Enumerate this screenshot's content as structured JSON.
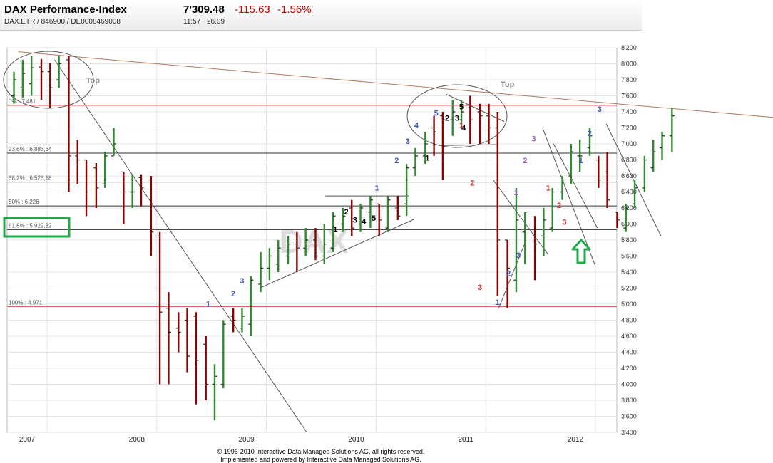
{
  "header": {
    "title": "DAX Performance-Index",
    "identifiers": "DAX.ETR  /  846900  /  DE0008469008",
    "price": "7'309.48",
    "change": "-115.63",
    "change_pct": "-1.56%",
    "time": "11:57",
    "date": "26.09"
  },
  "footer": {
    "line1": "© 1996-2010 Interactive Data Managed Solutions AG, all rights reserved.",
    "line2": "Implemented and powered by Interactive Data Managed Solutions AG."
  },
  "colors": {
    "up": "#2e8b2e",
    "down": "#8b0000",
    "highlight": "#22a84a",
    "fib_line": "#333333",
    "extreme_line": "#cc3333",
    "resistance": "#b07a60"
  },
  "chart_data": {
    "type": "ohlc",
    "watermark": "DAX",
    "ylim": [
      3400,
      8200
    ],
    "y_ticks": [
      "8'200",
      "8'000",
      "7'800",
      "7'600",
      "7'400",
      "7'200",
      "7'000",
      "6'800",
      "6'600",
      "6'400",
      "6'200",
      "6'000",
      "5'800",
      "5'600",
      "5'400",
      "5'200",
      "5'000",
      "4'800",
      "4'600",
      "4'400",
      "4'200",
      "4'000",
      "3'800",
      "3'600",
      "3'400"
    ],
    "x_labels": [
      {
        "t": 2007.0,
        "label": "2007"
      },
      {
        "t": 2008.0,
        "label": "2008"
      },
      {
        "t": 2009.0,
        "label": "2009"
      },
      {
        "t": 2010.0,
        "label": "2010"
      },
      {
        "t": 2011.0,
        "label": "2011"
      },
      {
        "t": 2012.0,
        "label": "2012"
      }
    ],
    "fib_levels": [
      {
        "label": "0% : 7,481",
        "value": 7481,
        "extreme": true
      },
      {
        "label": "23,6% : 6.883,64",
        "value": 6884,
        "extreme": false
      },
      {
        "label": "38,2% : 6.523,18",
        "value": 6523,
        "extreme": false
      },
      {
        "label": "50% : 6.226",
        "value": 6226,
        "extreme": false
      },
      {
        "label": "61,8% : 5.929,82",
        "value": 5930,
        "extreme": false
      },
      {
        "label": "100% : 4.971",
        "value": 4971,
        "extreme": true
      }
    ],
    "bars": [
      {
        "t": 2006.88,
        "o": 7600,
        "h": 7900,
        "l": 7500,
        "c": 7800
      },
      {
        "t": 2006.96,
        "o": 7700,
        "h": 8050,
        "l": 7580,
        "c": 7880
      },
      {
        "t": 2007.04,
        "o": 7750,
        "h": 8100,
        "l": 7600,
        "c": 7950
      },
      {
        "t": 2007.13,
        "o": 7960,
        "h": 8060,
        "l": 7550,
        "c": 7900
      },
      {
        "t": 2007.21,
        "o": 7900,
        "h": 8010,
        "l": 7450,
        "c": 7700
      },
      {
        "t": 2007.29,
        "o": 7800,
        "h": 8100,
        "l": 7700,
        "c": 8000
      },
      {
        "t": 2007.38,
        "o": 8050,
        "h": 8100,
        "l": 6400,
        "c": 6850
      },
      {
        "t": 2007.46,
        "o": 6850,
        "h": 7050,
        "l": 6500,
        "c": 6800
      },
      {
        "t": 2007.54,
        "o": 6800,
        "h": 6800,
        "l": 6100,
        "c": 6400
      },
      {
        "t": 2007.63,
        "o": 6700,
        "h": 6760,
        "l": 6200,
        "c": 6450
      },
      {
        "t": 2007.71,
        "o": 6500,
        "h": 6900,
        "l": 6450,
        "c": 6850
      },
      {
        "t": 2007.79,
        "o": 6850,
        "h": 7200,
        "l": 6850,
        "c": 7000
      },
      {
        "t": 2007.88,
        "o": 6650,
        "h": 6650,
        "l": 6000,
        "c": 6400
      },
      {
        "t": 2007.96,
        "o": 6400,
        "h": 6620,
        "l": 6200,
        "c": 6400
      },
      {
        "t": 2008.04,
        "o": 6580,
        "h": 6620,
        "l": 6220,
        "c": 6450
      },
      {
        "t": 2008.13,
        "o": 6550,
        "h": 6600,
        "l": 5600,
        "c": 5900
      },
      {
        "t": 2008.21,
        "o": 5850,
        "h": 5900,
        "l": 4000,
        "c": 4900
      },
      {
        "t": 2008.29,
        "o": 4950,
        "h": 5150,
        "l": 4000,
        "c": 4650
      },
      {
        "t": 2008.38,
        "o": 4700,
        "h": 4900,
        "l": 4400,
        "c": 4650
      },
      {
        "t": 2008.46,
        "o": 4800,
        "h": 4950,
        "l": 4150,
        "c": 4350
      },
      {
        "t": 2008.54,
        "o": 4850,
        "h": 4900,
        "l": 3750,
        "c": 4300
      },
      {
        "t": 2008.63,
        "o": 4500,
        "h": 4600,
        "l": 3800,
        "c": 4000
      },
      {
        "t": 2008.71,
        "o": 4000,
        "h": 4250,
        "l": 3550,
        "c": 4100
      },
      {
        "t": 2008.79,
        "o": 4000,
        "h": 4800,
        "l": 3950,
        "c": 4750
      },
      {
        "t": 2008.88,
        "o": 4850,
        "h": 4950,
        "l": 4650,
        "c": 4800
      },
      {
        "t": 2008.96,
        "o": 4700,
        "h": 4950,
        "l": 4650,
        "c": 4850
      },
      {
        "t": 2009.04,
        "o": 4750,
        "h": 5350,
        "l": 4600,
        "c": 5300
      },
      {
        "t": 2009.13,
        "o": 5250,
        "h": 5650,
        "l": 5150,
        "c": 5450
      },
      {
        "t": 2009.21,
        "o": 5450,
        "h": 5700,
        "l": 5300,
        "c": 5600
      },
      {
        "t": 2009.29,
        "o": 5500,
        "h": 5800,
        "l": 5400,
        "c": 5700
      },
      {
        "t": 2009.38,
        "o": 5600,
        "h": 5850,
        "l": 5500,
        "c": 5750
      },
      {
        "t": 2009.46,
        "o": 5750,
        "h": 5900,
        "l": 5400,
        "c": 5700
      },
      {
        "t": 2009.54,
        "o": 5700,
        "h": 5950,
        "l": 5600,
        "c": 5800
      },
      {
        "t": 2009.63,
        "o": 5800,
        "h": 5950,
        "l": 5550,
        "c": 5600
      },
      {
        "t": 2009.71,
        "o": 5600,
        "h": 6000,
        "l": 5500,
        "c": 5750
      },
      {
        "t": 2009.79,
        "o": 5700,
        "h": 6150,
        "l": 5650,
        "c": 6100
      },
      {
        "t": 2009.88,
        "o": 6000,
        "h": 6200,
        "l": 5900,
        "c": 6100
      },
      {
        "t": 2009.96,
        "o": 6200,
        "h": 6300,
        "l": 5850,
        "c": 5950
      },
      {
        "t": 2010.04,
        "o": 6000,
        "h": 6250,
        "l": 5900,
        "c": 6200
      },
      {
        "t": 2010.13,
        "o": 6150,
        "h": 6350,
        "l": 5950,
        "c": 6300
      },
      {
        "t": 2010.21,
        "o": 6250,
        "h": 6250,
        "l": 5850,
        "c": 6050
      },
      {
        "t": 2010.29,
        "o": 5950,
        "h": 6350,
        "l": 5900,
        "c": 6300
      },
      {
        "t": 2010.38,
        "o": 6200,
        "h": 6350,
        "l": 6050,
        "c": 6100
      },
      {
        "t": 2010.46,
        "o": 6250,
        "h": 6750,
        "l": 6100,
        "c": 6700
      },
      {
        "t": 2010.54,
        "o": 6700,
        "h": 6950,
        "l": 6600,
        "c": 6850
      },
      {
        "t": 2010.63,
        "o": 6850,
        "h": 7150,
        "l": 6750,
        "c": 7000
      },
      {
        "t": 2010.71,
        "o": 7200,
        "h": 7350,
        "l": 6850,
        "c": 7150
      },
      {
        "t": 2010.79,
        "o": 7350,
        "h": 7400,
        "l": 6550,
        "c": 7300
      },
      {
        "t": 2010.88,
        "o": 7300,
        "h": 7550,
        "l": 7100,
        "c": 7400
      },
      {
        "t": 2010.96,
        "o": 7300,
        "h": 7550,
        "l": 7200,
        "c": 7400
      },
      {
        "t": 2011.04,
        "o": 7450,
        "h": 7600,
        "l": 7000,
        "c": 7300
      },
      {
        "t": 2011.13,
        "o": 7400,
        "h": 7500,
        "l": 7000,
        "c": 7350
      },
      {
        "t": 2011.21,
        "o": 7350,
        "h": 7500,
        "l": 7000,
        "c": 7200
      },
      {
        "t": 2011.29,
        "o": 7200,
        "h": 7400,
        "l": 5100,
        "c": 5800
      },
      {
        "t": 2011.38,
        "o": 5800,
        "h": 5800,
        "l": 4950,
        "c": 5450
      },
      {
        "t": 2011.46,
        "o": 5300,
        "h": 6450,
        "l": 5150,
        "c": 6050
      },
      {
        "t": 2011.54,
        "o": 5900,
        "h": 6150,
        "l": 5500,
        "c": 6150
      },
      {
        "t": 2011.63,
        "o": 5850,
        "h": 6100,
        "l": 5300,
        "c": 5750
      },
      {
        "t": 2011.71,
        "o": 5850,
        "h": 6200,
        "l": 5600,
        "c": 6050
      },
      {
        "t": 2011.79,
        "o": 5950,
        "h": 6450,
        "l": 5900,
        "c": 6400
      },
      {
        "t": 2011.88,
        "o": 6400,
        "h": 6600,
        "l": 6300,
        "c": 6550
      },
      {
        "t": 2011.96,
        "o": 6600,
        "h": 7000,
        "l": 6500,
        "c": 6900
      },
      {
        "t": 2012.04,
        "o": 6850,
        "h": 7050,
        "l": 6650,
        "c": 6850
      },
      {
        "t": 2012.13,
        "o": 6950,
        "h": 7200,
        "l": 6850,
        "c": 7100
      },
      {
        "t": 2012.21,
        "o": 6800,
        "h": 6850,
        "l": 6450,
        "c": 6550
      },
      {
        "t": 2012.29,
        "o": 6650,
        "h": 6900,
        "l": 6200,
        "c": 6300
      },
      {
        "t": 2012.38,
        "o": 6150,
        "h": 6150,
        "l": 5950,
        "c": 6050
      },
      {
        "t": 2012.46,
        "o": 5950,
        "h": 6250,
        "l": 5900,
        "c": 6200
      },
      {
        "t": 2012.54,
        "o": 6250,
        "h": 6550,
        "l": 6200,
        "c": 6450
      },
      {
        "t": 2012.63,
        "o": 6450,
        "h": 6850,
        "l": 6400,
        "c": 6800
      },
      {
        "t": 2012.71,
        "o": 6700,
        "h": 7050,
        "l": 6650,
        "c": 6900
      },
      {
        "t": 2012.79,
        "o": 6950,
        "h": 7150,
        "l": 6800,
        "c": 7100
      },
      {
        "t": 2012.88,
        "o": 7100,
        "h": 7450,
        "l": 6900,
        "c": 7350
      }
    ],
    "wave_labels": [
      {
        "label": "Top",
        "t": 2007.6,
        "v": 7760,
        "c": "#8e8e8e"
      },
      {
        "label": "Top",
        "t": 2011.38,
        "v": 7710,
        "c": "#8e8e8e"
      },
      {
        "label": "1",
        "t": 2008.65,
        "v": 4970,
        "c": "#4455bb"
      },
      {
        "label": "2",
        "t": 2008.88,
        "v": 5100,
        "c": "#4455bb"
      },
      {
        "label": "3",
        "t": 2008.96,
        "v": 5260,
        "c": "#4455bb"
      },
      {
        "label": "1",
        "t": 2009.81,
        "v": 5900,
        "c": "#000"
      },
      {
        "label": "2",
        "t": 2009.91,
        "v": 6120,
        "c": "#000"
      },
      {
        "label": "3",
        "t": 2009.99,
        "v": 6020,
        "c": "#000"
      },
      {
        "label": "4",
        "t": 2010.07,
        "v": 6000,
        "c": "#000"
      },
      {
        "label": "5",
        "t": 2010.16,
        "v": 6040,
        "c": "#000"
      },
      {
        "label": "1",
        "t": 2010.19,
        "v": 6420,
        "c": "#4455bb"
      },
      {
        "label": "2",
        "t": 2010.37,
        "v": 6760,
        "c": "#4455bb"
      },
      {
        "label": "3",
        "t": 2010.47,
        "v": 7000,
        "c": "#4455bb"
      },
      {
        "label": "4",
        "t": 2010.55,
        "v": 7200,
        "c": "#4455bb"
      },
      {
        "label": "5",
        "t": 2010.73,
        "v": 7350,
        "c": "#4455bb"
      },
      {
        "label": "1",
        "t": 2010.65,
        "v": 6790,
        "c": "#000"
      },
      {
        "label": "2",
        "t": 2010.83,
        "v": 7290,
        "c": "#000"
      },
      {
        "label": "3",
        "t": 2010.92,
        "v": 7290,
        "c": "#000"
      },
      {
        "label": "4",
        "t": 2010.98,
        "v": 7170,
        "c": "#000"
      },
      {
        "label": "5",
        "t": 2010.96,
        "v": 7430,
        "c": "#000"
      },
      {
        "label": "1",
        "t": 2010.96,
        "v": 7200,
        "c": "#cc3333"
      },
      {
        "label": "2",
        "t": 2011.06,
        "v": 6480,
        "c": "#cc3333"
      },
      {
        "label": "3",
        "t": 2011.13,
        "v": 5180,
        "c": "#cc3333"
      },
      {
        "label": "1",
        "t": 2011.29,
        "v": 4990,
        "c": "#4455bb"
      },
      {
        "label": "2",
        "t": 2011.39,
        "v": 5350,
        "c": "#4455bb"
      },
      {
        "label": "3",
        "t": 2011.48,
        "v": 5580,
        "c": "#4455bb"
      },
      {
        "label": "1",
        "t": 2011.46,
        "v": 6360,
        "c": "#9b59b6"
      },
      {
        "label": "2",
        "t": 2011.54,
        "v": 6760,
        "c": "#9b59b6"
      },
      {
        "label": "3",
        "t": 2011.62,
        "v": 7030,
        "c": "#9b59b6"
      },
      {
        "label": "1",
        "t": 2011.75,
        "v": 6420,
        "c": "#cc3333"
      },
      {
        "label": "2",
        "t": 2011.85,
        "v": 6200,
        "c": "#cc3333"
      },
      {
        "label": "3",
        "t": 2011.9,
        "v": 5990,
        "c": "#cc3333"
      },
      {
        "label": "1",
        "t": 2012.05,
        "v": 6760,
        "c": "#4455bb"
      },
      {
        "label": "2",
        "t": 2012.13,
        "v": 7100,
        "c": "#4455bb"
      },
      {
        "label": "3",
        "t": 2012.22,
        "v": 7400,
        "c": "#4455bb"
      }
    ]
  }
}
